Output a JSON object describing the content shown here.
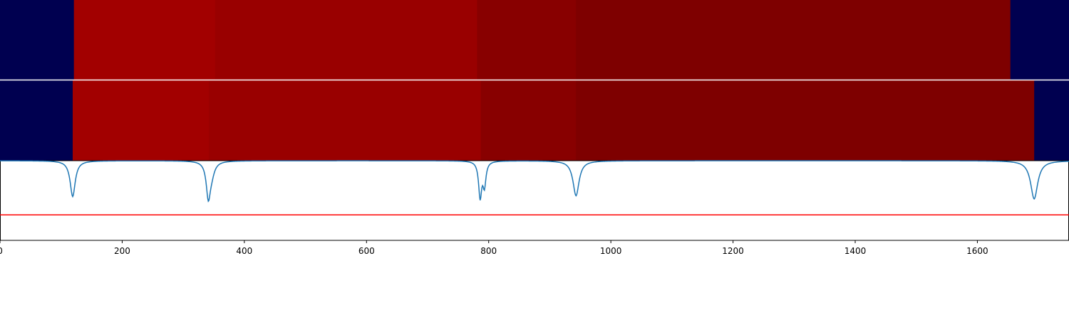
{
  "chart_data": {
    "type": "heatmap",
    "xlim": [
      0,
      1750
    ],
    "x_ticks": [
      "0",
      "200",
      "400",
      "600",
      "800",
      "1000",
      "1200",
      "1400",
      "1600"
    ],
    "colors": {
      "background": "#000050",
      "curve": "#1f77b4",
      "threshold": "#ff0000",
      "axis": "#000000"
    },
    "tracks": [
      {
        "segments": [
          {
            "start": 0,
            "end": 121,
            "color": "#000050"
          },
          {
            "start": 121,
            "end": 352,
            "color": "#a20000"
          },
          {
            "start": 352,
            "end": 781,
            "color": "#990000"
          },
          {
            "start": 781,
            "end": 943,
            "color": "#880000"
          },
          {
            "start": 943,
            "end": 1654,
            "color": "#7e0000"
          },
          {
            "start": 1654,
            "end": 1750,
            "color": "#000050"
          }
        ]
      },
      {
        "segments": [
          {
            "start": 0,
            "end": 119,
            "color": "#000050"
          },
          {
            "start": 119,
            "end": 342,
            "color": "#a20000"
          },
          {
            "start": 342,
            "end": 787,
            "color": "#990000"
          },
          {
            "start": 787,
            "end": 943,
            "color": "#880000"
          },
          {
            "start": 943,
            "end": 1693,
            "color": "#7e0000"
          },
          {
            "start": 1693,
            "end": 1750,
            "color": "#000050"
          }
        ]
      }
    ],
    "signal": {
      "ylim": [
        0,
        1
      ],
      "baseline": 1.0,
      "threshold": 0.32,
      "dips": [
        {
          "center": 119,
          "depth": 0.45,
          "width": 5
        },
        {
          "center": 341,
          "depth": 0.42,
          "width": 4
        },
        {
          "center": 346,
          "depth": 0.15,
          "width": 6
        },
        {
          "center": 786,
          "depth": 0.45,
          "width": 3
        },
        {
          "center": 793,
          "depth": 0.3,
          "width": 3
        },
        {
          "center": 943,
          "depth": 0.44,
          "width": 6
        },
        {
          "center": 1693,
          "depth": 0.48,
          "width": 7
        }
      ]
    }
  }
}
